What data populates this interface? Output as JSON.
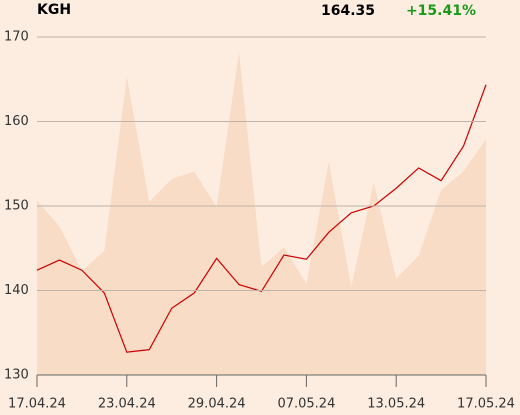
{
  "chart_data": {
    "type": "line",
    "title": "KGH",
    "price": "164.35",
    "change": "+15.41%",
    "categories": [
      "17.04.24",
      null,
      null,
      null,
      "23.04.24",
      null,
      null,
      null,
      "29.04.24",
      null,
      null,
      null,
      "07.05.24",
      null,
      null,
      null,
      "13.05.24",
      null,
      null,
      null,
      "17.05.24"
    ],
    "series": [
      {
        "kind": "area",
        "color": "#f8dcc6",
        "values": [
          150.6,
          147.6,
          142.3,
          144.7,
          165.3,
          150.5,
          153.2,
          154.1,
          149.9,
          168.2,
          142.8,
          145.1,
          140.8,
          155.2,
          140.4,
          152.8,
          141.4,
          144.1,
          151.9,
          154.1,
          157.9
        ]
      },
      {
        "kind": "line",
        "color": "#cc0000",
        "values": [
          142.4,
          143.6,
          142.4,
          139.7,
          132.7,
          133.0,
          137.9,
          139.7,
          143.8,
          140.7,
          139.9,
          144.2,
          143.7,
          146.9,
          149.2,
          150.0,
          152.1,
          154.5,
          153.0,
          157.1,
          164.35
        ]
      }
    ],
    "ylim": [
      130,
      170
    ],
    "yticks": [
      130,
      140,
      150,
      160,
      170
    ],
    "grid": true
  }
}
